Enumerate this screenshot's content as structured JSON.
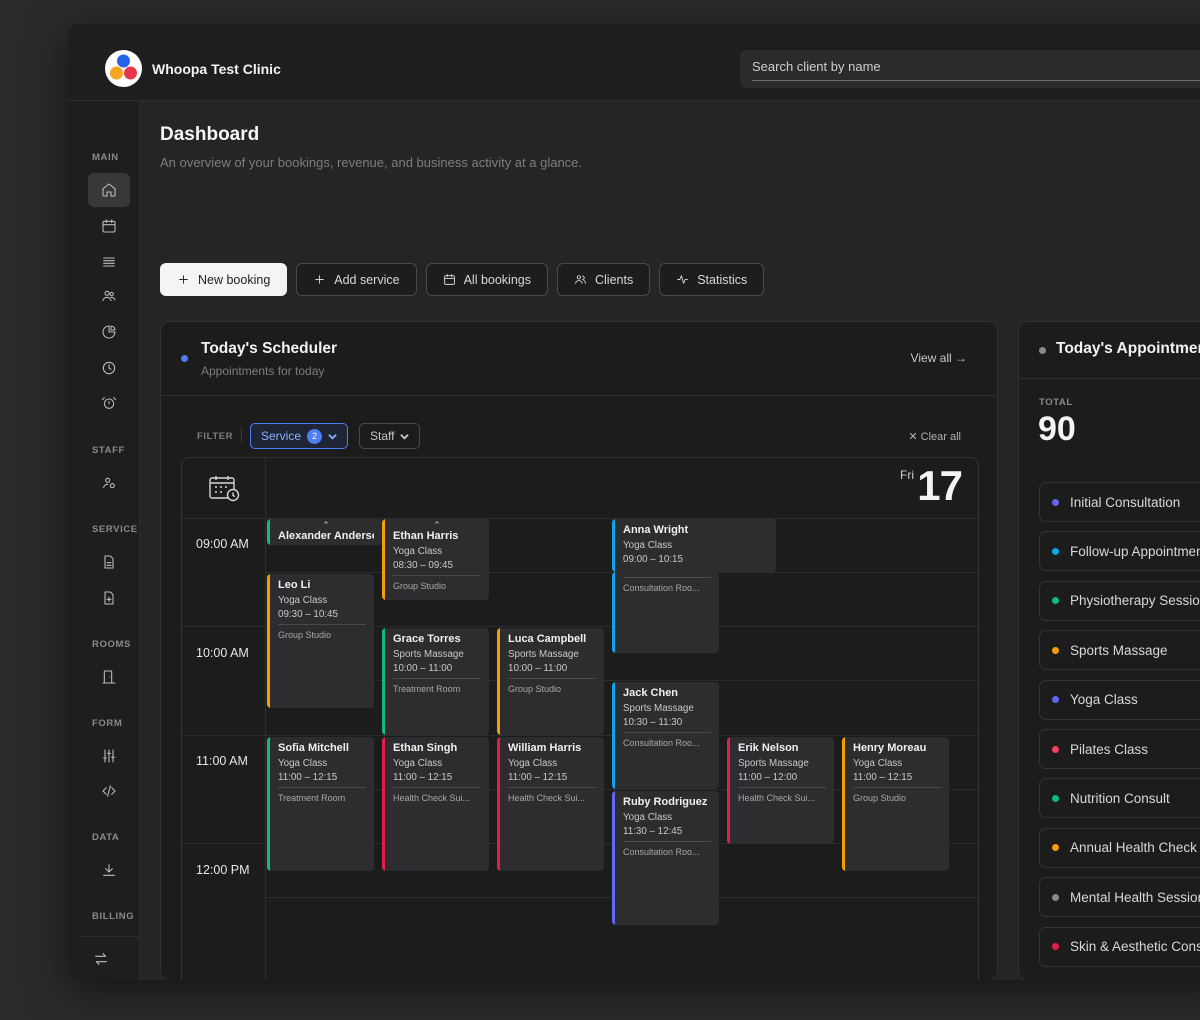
{
  "app": {
    "name": "Whoopa Test Clinic"
  },
  "search": {
    "placeholder": "Search client by name"
  },
  "sidebar": {
    "sections": {
      "main": "MAIN",
      "staff": "STAFF",
      "service": "SERVICE",
      "rooms": "ROOMS",
      "form": "FORM",
      "data": "DATA",
      "billing": "BILLING"
    }
  },
  "page": {
    "title": "Dashboard",
    "subtitle": "An overview of your bookings, revenue, and business activity at a glance."
  },
  "actions": {
    "new_booking": "New booking",
    "add_service": "Add service",
    "all_bookings": "All bookings",
    "clients": "Clients",
    "statistics": "Statistics"
  },
  "scheduler": {
    "title": "Today's Scheduler",
    "subtitle": "Appointments for today",
    "view_all": "View all →",
    "filter_label": "FILTER",
    "service_filter": "Service",
    "service_count": "2",
    "staff_filter": "Staff",
    "clear_all": "Clear all",
    "day_name": "Fri",
    "day_number": "17",
    "times": [
      "09:00 AM",
      "10:00 AM",
      "11:00 AM",
      "12:00 PM"
    ],
    "events": [
      {
        "name": "Alexander Anderson",
        "service": "",
        "time": "",
        "room": "",
        "up": "⌃",
        "color": "green"
      },
      {
        "name": "Ethan Harris",
        "service": "Yoga Class",
        "time": "08:30 – 09:45",
        "room": "Group Studio",
        "up": "⌃",
        "color": "orange"
      },
      {
        "name": "Anna Wright",
        "service": "Yoga Class",
        "time": "09:00 – 10:15",
        "room": "",
        "up": "",
        "color": "blue"
      },
      {
        "name": "",
        "service": "",
        "time": "",
        "room": "Consultation Roo...",
        "up": "",
        "color": "blue"
      },
      {
        "name": "Leo Li",
        "service": "Yoga Class",
        "time": "09:30 – 10:45",
        "room": "Group Studio",
        "up": "",
        "color": "orange"
      },
      {
        "name": "Grace Torres",
        "service": "Sports Massage",
        "time": "10:00 – 11:00",
        "room": "Treatment Room",
        "up": "",
        "color": "green"
      },
      {
        "name": "Luca Campbell",
        "service": "Sports Massage",
        "time": "10:00 – 11:00",
        "room": "Group Studio",
        "up": "",
        "color": "orange"
      },
      {
        "name": "Jack Chen",
        "service": "Sports Massage",
        "time": "10:30 – 11:30",
        "room": "Consultation Roo...",
        "up": "",
        "color": "blue"
      },
      {
        "name": "Sofia Mitchell",
        "service": "Yoga Class",
        "time": "11:00 – 12:15",
        "room": "Treatment Room",
        "up": "",
        "color": "green"
      },
      {
        "name": "Ethan Singh",
        "service": "Yoga Class",
        "time": "11:00 – 12:15",
        "room": "Health Check Sui...",
        "up": "",
        "color": "red"
      },
      {
        "name": "William Harris",
        "service": "Yoga Class",
        "time": "11:00 – 12:15",
        "room": "Health Check Sui...",
        "up": "",
        "color": "red"
      },
      {
        "name": "Erik Nelson",
        "service": "Sports Massage",
        "time": "11:00 – 12:00",
        "room": "Health Check Sui...",
        "up": "",
        "color": "red"
      },
      {
        "name": "Henry Moreau",
        "service": "Yoga Class",
        "time": "11:00 – 12:15",
        "room": "Group Studio",
        "up": "",
        "color": "orange"
      },
      {
        "name": "Ruby Rodriguez",
        "service": "Yoga Class",
        "time": "11:30 – 12:45",
        "room": "Consultation Roo...",
        "up": "",
        "color": "indigo"
      }
    ]
  },
  "appointments": {
    "title": "Today's Appointments",
    "total_label": "TOTAL",
    "total_value": "90",
    "services": [
      {
        "name": "Initial Consultation",
        "color": "#6366f1"
      },
      {
        "name": "Follow-up Appointment",
        "color": "#0ea5e9"
      },
      {
        "name": "Physiotherapy Session",
        "color": "#10b981"
      },
      {
        "name": "Sports Massage",
        "color": "#f59e0b"
      },
      {
        "name": "Yoga Class",
        "color": "#6366f1"
      },
      {
        "name": "Pilates Class",
        "color": "#f43f5e"
      },
      {
        "name": "Nutrition Consult",
        "color": "#10b981"
      },
      {
        "name": "Annual Health Check",
        "color": "#f59e0b"
      },
      {
        "name": "Mental Health Session",
        "color": "#8a8a8c"
      },
      {
        "name": "Skin & Aesthetic Consultation",
        "color": "#e11d48"
      }
    ]
  }
}
